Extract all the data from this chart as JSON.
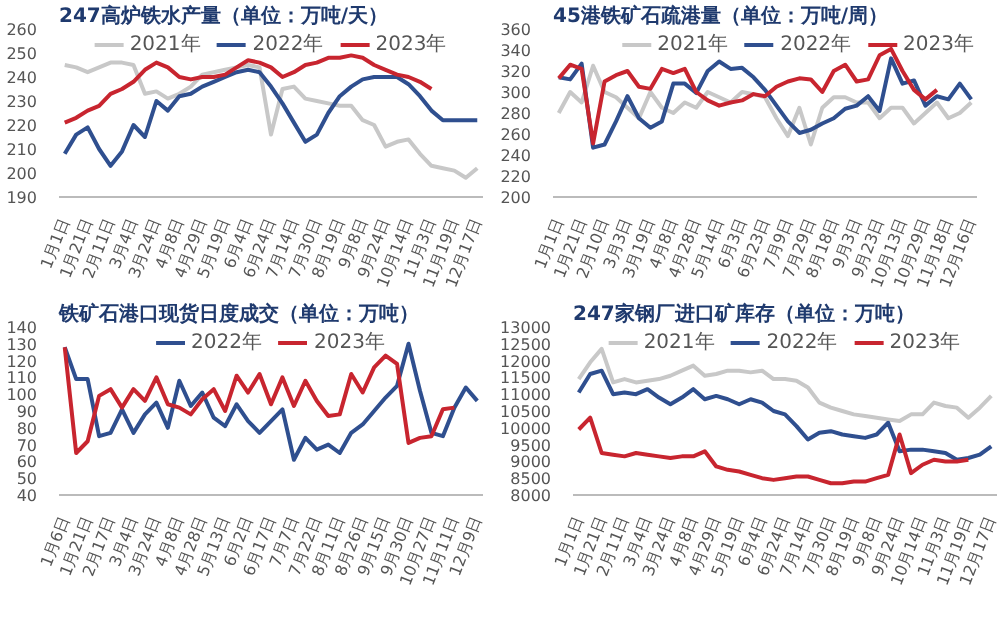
{
  "chart_data": [
    {
      "type": "line",
      "title": "247高炉铁水产量（单位：万吨/天）",
      "categories": [
        "1月1日",
        null,
        "1月21日",
        null,
        "2月11日",
        null,
        "3月4日",
        null,
        "3月24日",
        null,
        "4月8日",
        null,
        "4月29日",
        null,
        "5月19日",
        null,
        "6月4日",
        null,
        "6月24日",
        null,
        "7月14日",
        null,
        "7月30日",
        null,
        "8月19日",
        null,
        "9月8日",
        null,
        "9月24日",
        null,
        "10月14日",
        null,
        "11月3日",
        null,
        "11月19日",
        null,
        "12月17日"
      ],
      "ylim": [
        190,
        260
      ],
      "yticks": [
        190,
        200,
        210,
        220,
        230,
        240,
        250,
        260
      ],
      "legend": "top",
      "series": [
        {
          "name": "2021年",
          "color": "#c8c8c8",
          "values": [
            245,
            244,
            242,
            244,
            246,
            246,
            245,
            233,
            234,
            231,
            233,
            236,
            241,
            242,
            243,
            244,
            245,
            244,
            216,
            235,
            236,
            231,
            230,
            229,
            228,
            228,
            222,
            220,
            211,
            213,
            214,
            208,
            203,
            202,
            201,
            198,
            202
          ]
        },
        {
          "name": "2022年",
          "color": "#2f4f8f",
          "values": [
            208,
            216,
            219,
            210,
            203,
            209,
            220,
            215,
            230,
            226,
            232,
            233,
            236,
            238,
            240,
            242,
            243,
            242,
            236,
            229,
            221,
            213,
            216,
            225,
            232,
            236,
            239,
            240,
            240,
            240,
            237,
            232,
            226,
            222,
            222,
            222,
            222
          ]
        },
        {
          "name": "2023年",
          "color": "#c8252f",
          "values": [
            221,
            223,
            226,
            228,
            233,
            235,
            238,
            243,
            246,
            244,
            240,
            239,
            240,
            240,
            241,
            244,
            247,
            246,
            244,
            240,
            242,
            245,
            246,
            248,
            248,
            249,
            248,
            245,
            243,
            241,
            240,
            238,
            235,
            null,
            null,
            null,
            null
          ]
        }
      ]
    },
    {
      "type": "line",
      "title": "45港铁矿石疏港量（单位：万吨/周）",
      "categories": [
        "1月1日",
        null,
        "1月21日",
        null,
        "2月10日",
        null,
        "3月3日",
        null,
        "3月19日",
        null,
        "4月8日",
        null,
        "4月28日",
        null,
        "5月14日",
        null,
        "6月3日",
        null,
        "6月23日",
        null,
        "7月9日",
        null,
        "7月29日",
        null,
        "8月18日",
        null,
        "9月3日",
        null,
        "9月23日",
        null,
        "10月13日",
        null,
        "10月29日",
        null,
        "11月18日",
        null,
        "12月16日"
      ],
      "ylim": [
        200,
        360
      ],
      "yticks": [
        200,
        220,
        240,
        260,
        280,
        300,
        320,
        340,
        360
      ],
      "legend": "top right",
      "series": [
        {
          "name": "2021年",
          "color": "#c8c8c8",
          "values": [
            280,
            300,
            290,
            325,
            300,
            295,
            285,
            275,
            300,
            285,
            280,
            290,
            285,
            300,
            295,
            290,
            300,
            298,
            295,
            275,
            258,
            285,
            250,
            285,
            295,
            295,
            290,
            290,
            275,
            285,
            285,
            270,
            280,
            290,
            275,
            280,
            290
          ]
        },
        {
          "name": "2022年",
          "color": "#2f4f8f",
          "values": [
            314,
            312,
            327,
            247,
            250,
            272,
            296,
            275,
            266,
            272,
            308,
            308,
            299,
            320,
            329,
            322,
            323,
            314,
            302,
            287,
            272,
            261,
            264,
            270,
            275,
            284,
            287,
            296,
            282,
            332,
            308,
            311,
            287,
            296,
            293,
            308,
            293
          ]
        },
        {
          "name": "2023年",
          "color": "#c8252f",
          "values": [
            313,
            326,
            322,
            251,
            310,
            316,
            320,
            305,
            303,
            322,
            318,
            322,
            300,
            292,
            287,
            290,
            292,
            298,
            296,
            305,
            310,
            313,
            312,
            300,
            320,
            326,
            310,
            312,
            335,
            341,
            320,
            302,
            293,
            302,
            null,
            null,
            null
          ]
        }
      ]
    },
    {
      "type": "line",
      "title": "铁矿石港口现货日度成交（单位：万吨）",
      "categories": [
        "1月6日",
        null,
        "1月21日",
        null,
        "2月17日",
        null,
        "3月4日",
        null,
        "3月24日",
        null,
        "4月8日",
        null,
        "4月28日",
        null,
        "5月13日",
        null,
        "6月2日",
        null,
        "6月17日",
        null,
        "7月7日",
        null,
        "7月22日",
        null,
        "8月11日",
        null,
        "8月26日",
        null,
        "9月15日",
        null,
        "9月30日",
        null,
        "10月27日",
        null,
        "11月11日",
        null,
        "12月9日"
      ],
      "ylim": [
        40,
        140
      ],
      "yticks": [
        40,
        50,
        60,
        70,
        80,
        90,
        100,
        110,
        120,
        130,
        140
      ],
      "legend": "top",
      "series": [
        {
          "name": "2022年",
          "color": "#2f4f8f",
          "values": [
            128,
            109,
            109,
            75,
            77,
            91,
            77,
            88,
            95,
            80,
            108,
            93,
            101,
            86,
            81,
            94,
            84,
            77,
            84,
            91,
            61,
            74,
            67,
            70,
            65,
            77,
            82,
            90,
            98,
            105,
            130,
            102,
            77,
            75,
            92,
            104,
            96
          ]
        },
        {
          "name": "2023年",
          "color": "#c8252f",
          "values": [
            128,
            65,
            72,
            99,
            103,
            92,
            103,
            96,
            110,
            94,
            92,
            88,
            97,
            103,
            90,
            111,
            101,
            112,
            94,
            110,
            93,
            108,
            96,
            87,
            88,
            112,
            101,
            116,
            123,
            118,
            71,
            74,
            75,
            91,
            92,
            null,
            null
          ]
        }
      ]
    },
    {
      "type": "line",
      "title": "247家钢厂进口矿库存（单位：万吨）",
      "categories": [
        "1月1日",
        null,
        "1月21日",
        null,
        "2月11日",
        null,
        "3月4日",
        null,
        "3月24日",
        null,
        "4月8日",
        null,
        "4月29日",
        null,
        "5月19日",
        null,
        "6月4日",
        null,
        "6月24日",
        null,
        "7月14日",
        null,
        "7月30日",
        null,
        "8月19日",
        null,
        "9月8日",
        null,
        "9月24日",
        null,
        "10月14日",
        null,
        "11月3日",
        null,
        "11月19日",
        null,
        "12月17日"
      ],
      "ylim": [
        8000,
        13000
      ],
      "yticks": [
        8000,
        8500,
        9000,
        9500,
        10000,
        10500,
        11000,
        11500,
        12000,
        12500,
        13000
      ],
      "legend": "top",
      "series": [
        {
          "name": "2021年",
          "color": "#c8c8c8",
          "values": [
            11450,
            11950,
            12350,
            11350,
            11450,
            11350,
            11400,
            11450,
            11550,
            11700,
            11850,
            11550,
            11600,
            11700,
            11700,
            11650,
            11700,
            11450,
            11450,
            11400,
            11200,
            10750,
            10600,
            10500,
            10400,
            10350,
            10300,
            10250,
            10200,
            10400,
            10400,
            10750,
            10650,
            10600,
            10300,
            10600,
            10950
          ]
        },
        {
          "name": "2022年",
          "color": "#2f4f8f",
          "values": [
            11050,
            11600,
            11700,
            11000,
            11050,
            11000,
            11150,
            10900,
            10700,
            10900,
            11150,
            10850,
            10950,
            10850,
            10700,
            10850,
            10750,
            10500,
            10400,
            10050,
            9650,
            9850,
            9900,
            9800,
            9750,
            9700,
            9800,
            10150,
            9300,
            9350,
            9350,
            9300,
            9250,
            9050,
            9100,
            9200,
            9450
          ]
        },
        {
          "name": "2023年",
          "color": "#c8252f",
          "values": [
            9950,
            10300,
            9250,
            9200,
            9150,
            9250,
            9200,
            9150,
            9100,
            9150,
            9150,
            9300,
            8850,
            8750,
            8700,
            8600,
            8500,
            8450,
            8500,
            8550,
            8550,
            8450,
            8350,
            8350,
            8400,
            8400,
            8500,
            8600,
            9800,
            8650,
            8900,
            9050,
            9000,
            9000,
            9050,
            null,
            null
          ]
        }
      ]
    }
  ]
}
